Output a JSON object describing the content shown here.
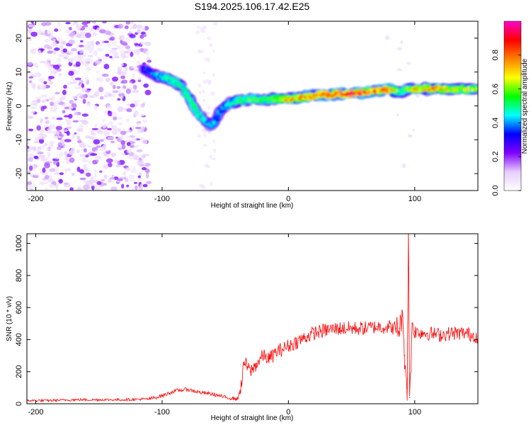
{
  "title": "S194.2025.106.17.42.E25",
  "chart_data": [
    {
      "type": "heatmap",
      "xlabel": "Height of straight line (km)",
      "ylabel": "Frequency (Hz)",
      "xlim": [
        -207,
        150
      ],
      "ylim": [
        -25,
        25
      ],
      "xticks": [
        -200,
        -100,
        0,
        100
      ],
      "yticks": [
        -20,
        -10,
        0,
        10,
        20
      ],
      "colorbar": {
        "label": "Normalized spectral amplitude",
        "range": [
          0,
          1
        ],
        "ticks": [
          0.0,
          0.2,
          0.4,
          0.6,
          0.8
        ],
        "colors": [
          "#ffffff",
          "#e6ccff",
          "#8000ff",
          "#0000ff",
          "#00ffff",
          "#00ff00",
          "#ffff00",
          "#ff8000",
          "#ff0000",
          "#ff00cc"
        ]
      },
      "ridge": {
        "x": [
          -115,
          -105,
          -95,
          -85,
          -80,
          -75,
          -70,
          -65,
          -60,
          -55,
          -50,
          -45,
          -40,
          -30,
          -20,
          -10,
          0,
          10,
          20,
          40,
          60,
          80,
          88,
          95,
          100,
          110,
          120,
          135,
          150
        ],
        "y": [
          11,
          9,
          8,
          6,
          3,
          0,
          -3,
          -5,
          -6,
          -2,
          0,
          1,
          1.5,
          2,
          2,
          2,
          2,
          2.5,
          3,
          3.5,
          4,
          5,
          4,
          5,
          5,
          5,
          5,
          5,
          5
        ],
        "amplitude": [
          0.3,
          0.4,
          0.5,
          0.5,
          0.55,
          0.5,
          0.5,
          0.45,
          0.4,
          0.4,
          0.4,
          0.45,
          0.5,
          0.55,
          0.5,
          0.6,
          0.7,
          0.75,
          0.8,
          0.85,
          0.85,
          0.8,
          0.5,
          0.6,
          0.7,
          0.75,
          0.7,
          0.65,
          0.6
        ]
      }
    },
    {
      "type": "line",
      "xlabel": "Height of straight line (km)",
      "ylabel": "SNR (10 * v/v)",
      "xlim": [
        -207,
        150
      ],
      "ylim": [
        0,
        1060
      ],
      "xticks": [
        -200,
        -100,
        0,
        100
      ],
      "yticks": [
        0,
        200,
        400,
        600,
        800,
        1000
      ],
      "series": [
        {
          "color": "#ff0000",
          "x": [
            -207,
            -190,
            -170,
            -150,
            -130,
            -110,
            -100,
            -90,
            -80,
            -70,
            -60,
            -50,
            -40,
            -37,
            -35,
            -30,
            -25,
            -20,
            -15,
            -10,
            -5,
            0,
            10,
            20,
            30,
            40,
            50,
            60,
            70,
            80,
            85,
            88,
            90,
            92,
            94,
            95,
            96,
            98,
            100,
            110,
            120,
            130,
            140,
            150
          ],
          "y": [
            20,
            20,
            25,
            25,
            25,
            30,
            50,
            80,
            90,
            70,
            60,
            40,
            30,
            130,
            260,
            200,
            250,
            300,
            280,
            320,
            340,
            360,
            400,
            440,
            460,
            470,
            470,
            470,
            480,
            480,
            470,
            470,
            550,
            300,
            100,
            1060,
            40,
            500,
            450,
            440,
            430,
            440,
            440,
            420
          ]
        }
      ]
    }
  ]
}
